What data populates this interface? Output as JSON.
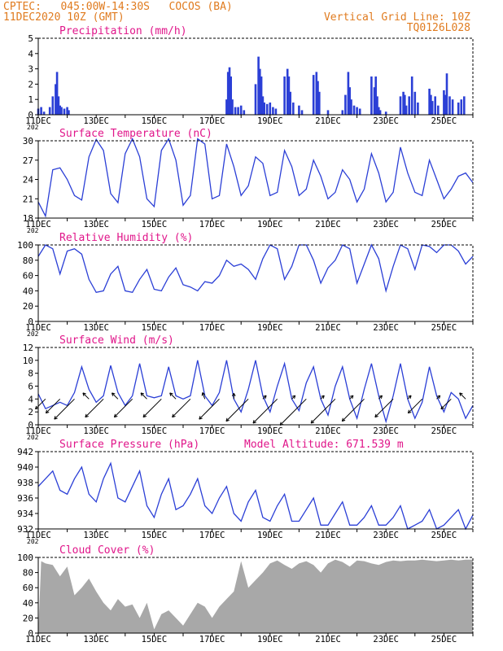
{
  "header": {
    "line1": "CPTEC:   045:00W-14:30S   COCOS (BA)",
    "line2": "11DEC2020 10Z (GMT)",
    "right1": "Vertical Grid Line: 10Z",
    "right2": "TQ0126L028",
    "model_altitude": "Model Altitude: 671.539 m"
  },
  "colors": {
    "header": "#e07b1f",
    "title": "#e0168a",
    "line": "#2b3fd6",
    "cloud": "#a8a8a8",
    "axis": "#000000"
  },
  "x_axis": {
    "day_start": 11,
    "day_end": 26,
    "labels": [
      {
        "day": 11,
        "text": "11DEC"
      },
      {
        "day": 13,
        "text": "13DEC"
      },
      {
        "day": 15,
        "text": "15DEC"
      },
      {
        "day": 17,
        "text": "17DEC"
      },
      {
        "day": 19,
        "text": "19DEC"
      },
      {
        "day": 21,
        "text": "21DEC"
      },
      {
        "day": 23,
        "text": "23DEC"
      },
      {
        "day": 25,
        "text": "25DEC"
      }
    ],
    "year_fragment": "202"
  },
  "chart_data": [
    {
      "id": "precip",
      "type": "bar",
      "title": "Precipitation (mm/h)",
      "ylim": [
        0,
        5
      ],
      "yticks": [
        0,
        1,
        2,
        3,
        4,
        5
      ],
      "x": [
        11.0,
        11.1,
        11.2,
        11.4,
        11.5,
        11.6,
        11.65,
        11.7,
        11.75,
        11.8,
        11.9,
        12.0,
        12.05,
        17.5,
        17.55,
        17.6,
        17.65,
        17.7,
        17.8,
        17.9,
        18.0,
        18.1,
        18.5,
        18.6,
        18.65,
        18.7,
        18.75,
        18.8,
        18.9,
        19.0,
        19.1,
        19.2,
        19.5,
        19.6,
        19.65,
        19.7,
        19.8,
        20.0,
        20.1,
        20.5,
        20.6,
        20.65,
        20.7,
        21.0,
        21.5,
        21.6,
        21.7,
        21.75,
        21.8,
        21.9,
        22.0,
        22.1,
        22.5,
        22.6,
        22.65,
        22.7,
        22.75,
        22.8,
        23.0,
        23.5,
        23.6,
        23.65,
        23.7,
        23.8,
        23.9,
        24.0,
        24.1,
        24.5,
        24.55,
        24.6,
        24.7,
        24.8,
        25.0,
        25.05,
        25.1,
        25.2,
        25.3,
        25.5,
        25.6,
        25.7
      ],
      "values": [
        0.4,
        0.5,
        0.2,
        0.5,
        1.2,
        2.0,
        2.8,
        1.2,
        0.6,
        0.5,
        0.4,
        0.5,
        0.3,
        1.0,
        2.8,
        3.1,
        2.5,
        1.0,
        0.5,
        0.5,
        0.6,
        0.3,
        2.0,
        3.8,
        3.0,
        2.5,
        1.2,
        0.8,
        0.7,
        0.8,
        0.5,
        0.4,
        2.5,
        3.0,
        2.5,
        1.5,
        0.8,
        0.6,
        0.3,
        2.6,
        2.8,
        2.2,
        1.5,
        0.3,
        0.3,
        1.3,
        2.8,
        1.8,
        1.0,
        0.6,
        0.5,
        0.4,
        2.5,
        1.8,
        2.5,
        1.2,
        0.5,
        0.3,
        0.2,
        1.2,
        1.5,
        1.3,
        0.6,
        1.2,
        2.5,
        1.5,
        0.8,
        1.7,
        1.3,
        0.9,
        1.2,
        0.6,
        1.6,
        1.3,
        2.7,
        1.2,
        1.0,
        0.8,
        1.0,
        1.2
      ]
    },
    {
      "id": "temp",
      "type": "line",
      "title": "Surface Temperature (nC)",
      "ylim": [
        18,
        30
      ],
      "yticks": [
        18,
        21,
        24,
        27,
        30
      ],
      "x": [
        11.0,
        11.25,
        11.5,
        11.75,
        12.0,
        12.25,
        12.5,
        12.75,
        13.0,
        13.25,
        13.5,
        13.75,
        14.0,
        14.25,
        14.5,
        14.75,
        15.0,
        15.25,
        15.5,
        15.75,
        16.0,
        16.25,
        16.5,
        16.75,
        17.0,
        17.25,
        17.5,
        17.75,
        18.0,
        18.25,
        18.5,
        18.75,
        19.0,
        19.25,
        19.5,
        19.75,
        20.0,
        20.25,
        20.5,
        20.75,
        21.0,
        21.25,
        21.5,
        21.75,
        22.0,
        22.25,
        22.5,
        22.75,
        23.0,
        23.25,
        23.5,
        23.75,
        24.0,
        24.25,
        24.5,
        24.75,
        25.0,
        25.25,
        25.5,
        25.75,
        26.0
      ],
      "values": [
        20.5,
        18.3,
        25.5,
        25.8,
        24.0,
        21.5,
        20.8,
        27.5,
        30.2,
        28.5,
        21.8,
        20.4,
        28.0,
        30.3,
        27.5,
        21.0,
        19.8,
        28.5,
        30.3,
        27.0,
        20.0,
        21.5,
        30.3,
        29.5,
        21.0,
        21.5,
        29.5,
        26.0,
        21.5,
        23.0,
        27.5,
        26.5,
        21.5,
        22.0,
        28.5,
        26.0,
        21.5,
        22.5,
        27.0,
        24.5,
        21.0,
        22.0,
        25.5,
        24.0,
        20.5,
        22.5,
        28.0,
        25.0,
        20.5,
        22.0,
        29.0,
        25.0,
        22.0,
        21.5,
        27.0,
        24.0,
        21.0,
        22.5,
        24.5,
        25.0,
        23.5
      ]
    },
    {
      "id": "rh",
      "type": "line",
      "title": "Relative Humidity (%)",
      "ylim": [
        0,
        100
      ],
      "yticks": [
        0,
        20,
        40,
        60,
        80,
        100
      ],
      "x": [
        11.0,
        11.25,
        11.5,
        11.75,
        12.0,
        12.25,
        12.5,
        12.75,
        13.0,
        13.25,
        13.5,
        13.75,
        14.0,
        14.25,
        14.5,
        14.75,
        15.0,
        15.25,
        15.5,
        15.75,
        16.0,
        16.25,
        16.5,
        16.75,
        17.0,
        17.25,
        17.5,
        17.75,
        18.0,
        18.25,
        18.5,
        18.75,
        19.0,
        19.25,
        19.5,
        19.75,
        20.0,
        20.25,
        20.5,
        20.75,
        21.0,
        21.25,
        21.5,
        21.75,
        22.0,
        22.25,
        22.5,
        22.75,
        23.0,
        23.25,
        23.5,
        23.75,
        24.0,
        24.25,
        24.5,
        24.75,
        25.0,
        25.25,
        25.5,
        25.75,
        26.0
      ],
      "values": [
        85,
        100,
        95,
        62,
        92,
        95,
        88,
        55,
        38,
        40,
        62,
        72,
        40,
        38,
        55,
        68,
        42,
        40,
        58,
        70,
        48,
        45,
        40,
        52,
        50,
        60,
        80,
        72,
        75,
        68,
        55,
        82,
        100,
        95,
        55,
        72,
        100,
        100,
        80,
        50,
        70,
        80,
        100,
        95,
        50,
        75,
        100,
        82,
        40,
        72,
        100,
        95,
        68,
        100,
        98,
        90,
        100,
        100,
        92,
        75,
        85
      ]
    },
    {
      "id": "wind",
      "type": "line",
      "title": "Surface Wind (m/s)",
      "ylim": [
        0,
        12
      ],
      "yticks": [
        0,
        2,
        4,
        6,
        8,
        10,
        12
      ],
      "x": [
        11.0,
        11.25,
        11.5,
        11.75,
        12.0,
        12.25,
        12.5,
        12.75,
        13.0,
        13.25,
        13.5,
        13.75,
        14.0,
        14.25,
        14.5,
        14.75,
        15.0,
        15.25,
        15.5,
        15.75,
        16.0,
        16.25,
        16.5,
        16.75,
        17.0,
        17.25,
        17.5,
        17.75,
        18.0,
        18.25,
        18.5,
        18.75,
        19.0,
        19.25,
        19.5,
        19.75,
        20.0,
        20.25,
        20.5,
        20.75,
        21.0,
        21.25,
        21.5,
        21.75,
        22.0,
        22.25,
        22.5,
        22.75,
        23.0,
        23.25,
        23.5,
        23.75,
        24.0,
        24.25,
        24.5,
        24.75,
        25.0,
        25.25,
        25.5,
        25.75,
        26.0
      ],
      "values": [
        4.8,
        2.5,
        3.0,
        3.5,
        3.0,
        5.0,
        9.0,
        5.5,
        3.5,
        4.5,
        9.2,
        5.0,
        3.0,
        4.5,
        9.5,
        4.5,
        4.2,
        4.5,
        9.0,
        4.5,
        4.0,
        4.5,
        10.0,
        4.5,
        3.0,
        5.0,
        10.0,
        4.0,
        2.0,
        5.5,
        10.0,
        4.5,
        2.0,
        6.0,
        9.5,
        4.0,
        2.2,
        6.5,
        9.0,
        4.0,
        1.5,
        6.0,
        9.0,
        4.0,
        1.0,
        5.5,
        9.5,
        4.5,
        0.5,
        4.5,
        9.5,
        4.0,
        1.0,
        3.5,
        9.0,
        4.5,
        2.0,
        5.0,
        4.0,
        1.0,
        3.0
      ],
      "arrows": [
        {
          "x": 11.25,
          "dir_deg": 225,
          "speed": 2.5
        },
        {
          "x": 11.75,
          "dir_deg": 225,
          "speed": 3.5
        },
        {
          "x": 12.25,
          "dir_deg": 225,
          "speed": 5.0
        },
        {
          "x": 12.75,
          "dir_deg": 135,
          "speed": 1.5
        },
        {
          "x": 13.25,
          "dir_deg": 225,
          "speed": 4.5
        },
        {
          "x": 13.75,
          "dir_deg": 135,
          "speed": 1.5
        },
        {
          "x": 14.25,
          "dir_deg": 225,
          "speed": 4.5
        },
        {
          "x": 14.75,
          "dir_deg": 135,
          "speed": 1.5
        },
        {
          "x": 15.25,
          "dir_deg": 225,
          "speed": 4.5
        },
        {
          "x": 15.75,
          "dir_deg": 135,
          "speed": 1.5
        },
        {
          "x": 16.25,
          "dir_deg": 225,
          "speed": 4.5
        },
        {
          "x": 16.75,
          "dir_deg": 110,
          "speed": 1.2
        },
        {
          "x": 17.25,
          "dir_deg": 225,
          "speed": 5.0
        },
        {
          "x": 17.75,
          "dir_deg": 90,
          "speed": 1.0
        },
        {
          "x": 18.25,
          "dir_deg": 225,
          "speed": 5.5
        },
        {
          "x": 18.75,
          "dir_deg": 45,
          "speed": 0.8
        },
        {
          "x": 19.25,
          "dir_deg": 225,
          "speed": 6.0
        },
        {
          "x": 19.75,
          "dir_deg": 45,
          "speed": 0.8
        },
        {
          "x": 20.25,
          "dir_deg": 225,
          "speed": 6.5
        },
        {
          "x": 20.75,
          "dir_deg": 45,
          "speed": 0.8
        },
        {
          "x": 21.25,
          "dir_deg": 225,
          "speed": 6.0
        },
        {
          "x": 21.75,
          "dir_deg": 45,
          "speed": 0.8
        },
        {
          "x": 22.25,
          "dir_deg": 225,
          "speed": 5.5
        },
        {
          "x": 22.75,
          "dir_deg": 45,
          "speed": 0.8
        },
        {
          "x": 23.25,
          "dir_deg": 225,
          "speed": 4.5
        },
        {
          "x": 23.75,
          "dir_deg": 45,
          "speed": 0.8
        },
        {
          "x": 24.25,
          "dir_deg": 225,
          "speed": 3.5
        },
        {
          "x": 24.75,
          "dir_deg": 45,
          "speed": 0.8
        },
        {
          "x": 25.25,
          "dir_deg": 225,
          "speed": 2.5
        },
        {
          "x": 25.75,
          "dir_deg": 135,
          "speed": 1.5
        }
      ]
    },
    {
      "id": "pressure",
      "type": "line",
      "title": "Surface Pressure (hPa)",
      "ylim": [
        932,
        942
      ],
      "yticks": [
        932,
        934,
        936,
        938,
        940,
        942
      ],
      "x": [
        11.0,
        11.25,
        11.5,
        11.75,
        12.0,
        12.25,
        12.5,
        12.75,
        13.0,
        13.25,
        13.5,
        13.75,
        14.0,
        14.25,
        14.5,
        14.75,
        15.0,
        15.25,
        15.5,
        15.75,
        16.0,
        16.25,
        16.5,
        16.75,
        17.0,
        17.25,
        17.5,
        17.75,
        18.0,
        18.25,
        18.5,
        18.75,
        19.0,
        19.25,
        19.5,
        19.75,
        20.0,
        20.25,
        20.5,
        20.75,
        21.0,
        21.25,
        21.5,
        21.75,
        22.0,
        22.25,
        22.5,
        22.75,
        23.0,
        23.25,
        23.5,
        23.75,
        24.0,
        24.25,
        24.5,
        24.75,
        25.0,
        25.25,
        25.5,
        25.75,
        26.0
      ],
      "values": [
        937.5,
        938.5,
        939.5,
        937.0,
        936.5,
        938.5,
        940.0,
        936.5,
        935.5,
        938.5,
        940.5,
        936.0,
        935.5,
        937.5,
        939.5,
        935.0,
        933.5,
        936.5,
        938.5,
        934.5,
        935.0,
        936.5,
        938.5,
        935.0,
        934.0,
        936.0,
        937.5,
        934.0,
        933.0,
        935.5,
        937.0,
        933.5,
        933.0,
        935.0,
        936.5,
        933.0,
        933.0,
        934.5,
        936.0,
        932.5,
        932.5,
        934.0,
        935.5,
        932.5,
        932.5,
        933.5,
        935.0,
        932.5,
        932.5,
        933.5,
        935.0,
        932.0,
        932.5,
        933.0,
        934.5,
        932.0,
        932.5,
        933.5,
        934.5,
        932.0,
        933.8
      ]
    },
    {
      "id": "cloud",
      "type": "area",
      "title": "Cloud Cover (%)",
      "ylim": [
        0,
        100
      ],
      "yticks": [
        0,
        20,
        40,
        60,
        80,
        100
      ],
      "x": [
        11.0,
        11.1,
        11.25,
        11.5,
        11.75,
        12.0,
        12.25,
        12.5,
        12.75,
        13.0,
        13.25,
        13.5,
        13.75,
        14.0,
        14.25,
        14.5,
        14.75,
        15.0,
        15.25,
        15.5,
        15.75,
        16.0,
        16.25,
        16.5,
        16.75,
        17.0,
        17.25,
        17.5,
        17.75,
        18.0,
        18.25,
        18.5,
        18.75,
        19.0,
        19.25,
        19.5,
        19.75,
        20.0,
        20.25,
        20.5,
        20.75,
        21.0,
        21.25,
        21.5,
        21.75,
        22.0,
        22.25,
        22.5,
        22.75,
        23.0,
        23.25,
        23.5,
        23.75,
        24.0,
        24.25,
        24.5,
        24.75,
        25.0,
        25.25,
        25.5,
        25.75,
        26.0
      ],
      "values": [
        0,
        95,
        92,
        90,
        75,
        88,
        50,
        60,
        72,
        55,
        40,
        30,
        45,
        35,
        38,
        20,
        40,
        5,
        25,
        30,
        20,
        10,
        25,
        40,
        35,
        20,
        35,
        45,
        55,
        95,
        60,
        70,
        80,
        92,
        96,
        90,
        85,
        92,
        95,
        90,
        80,
        92,
        97,
        94,
        88,
        96,
        95,
        92,
        90,
        94,
        96,
        95,
        96,
        96,
        97,
        96,
        95,
        96,
        97,
        96,
        97,
        97
      ]
    }
  ]
}
